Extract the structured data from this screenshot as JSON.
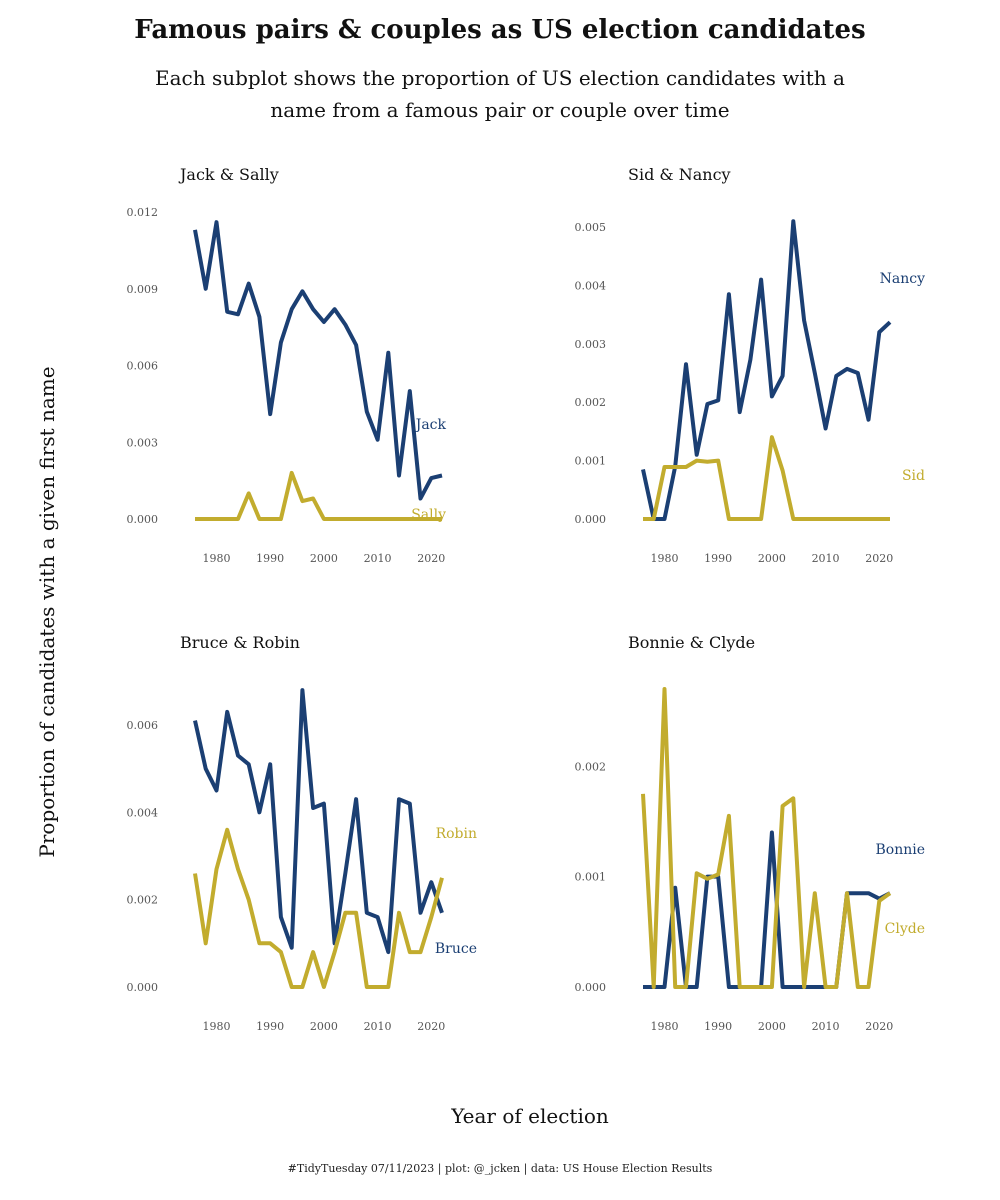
{
  "header": {
    "title": "Famous pairs & couples as US election candidates",
    "subtitle": "Each subplot shows the proportion of US election candidates with a name from a famous pair or couple over time"
  },
  "axes": {
    "ylabel": "Proportion of candidates with a given first name",
    "xlabel": "Year of election"
  },
  "caption": "#TidyTuesday 07/11/2023 | plot: @_jcken | data: US House Election Results",
  "colors": {
    "first": "#1b3f73",
    "second": "#c2ac2e"
  },
  "chart_data": [
    {
      "type": "line",
      "title": "Jack & Sally",
      "x": [
        1976,
        1978,
        1980,
        1982,
        1984,
        1986,
        1988,
        1990,
        1992,
        1994,
        1996,
        1998,
        2000,
        2002,
        2004,
        2006,
        2008,
        2010,
        2012,
        2014,
        2016,
        2018,
        2020,
        2022
      ],
      "xticks": [
        1980,
        1990,
        2000,
        2010,
        2020
      ],
      "yticks": [
        "0.000",
        "0.003",
        "0.006",
        "0.009",
        "0.012"
      ],
      "ylim": [
        0,
        0.012
      ],
      "series": [
        {
          "name": "Jack",
          "values": [
            0.0113,
            0.009,
            0.0116,
            0.0081,
            0.008,
            0.0092,
            0.0079,
            0.0041,
            0.0069,
            0.0082,
            0.0089,
            0.0082,
            0.0077,
            0.0082,
            0.0076,
            0.0068,
            0.0042,
            0.0031,
            0.0065,
            0.0017,
            0.005,
            0.0008,
            0.0016,
            0.0017
          ]
        },
        {
          "name": "Sally",
          "values": [
            0,
            0,
            0,
            0,
            0,
            0.001,
            0,
            0,
            0,
            0.0018,
            0.0007,
            0.0008,
            0,
            0,
            0,
            0,
            0,
            0,
            0,
            0,
            0,
            0,
            0,
            0
          ]
        }
      ]
    },
    {
      "type": "line",
      "title": "Sid & Nancy",
      "x": [
        1976,
        1978,
        1980,
        1982,
        1984,
        1986,
        1988,
        1990,
        1992,
        1994,
        1996,
        1998,
        2000,
        2002,
        2004,
        2006,
        2008,
        2010,
        2012,
        2014,
        2016,
        2018,
        2020,
        2022
      ],
      "xticks": [
        1980,
        1990,
        2000,
        2010,
        2020
      ],
      "yticks": [
        "0.000",
        "0.001",
        "0.002",
        "0.003",
        "0.004",
        "0.005"
      ],
      "ylim": [
        0,
        0.005
      ],
      "series": [
        {
          "name": "Nancy",
          "values": [
            0.00085,
            0,
            0,
            0.0009,
            0.00265,
            0.0011,
            0.00197,
            0.00203,
            0.00385,
            0.00183,
            0.00273,
            0.0041,
            0.0021,
            0.00245,
            0.0051,
            0.0034,
            0.0025,
            0.00155,
            0.00245,
            0.00257,
            0.0025,
            0.0017,
            0.0032,
            0.00337
          ]
        },
        {
          "name": "Sid",
          "values": [
            0,
            0,
            0.00089,
            0.00089,
            0.00089,
            0.001,
            0.00098,
            0.001,
            0,
            0,
            0,
            0,
            0.0014,
            0.00083,
            0,
            0,
            0,
            0,
            0,
            0,
            0,
            0,
            0,
            0
          ]
        }
      ]
    },
    {
      "type": "line",
      "title": "Bruce & Robin",
      "x": [
        1976,
        1978,
        1980,
        1982,
        1984,
        1986,
        1988,
        1990,
        1992,
        1994,
        1996,
        1998,
        2000,
        2002,
        2004,
        2006,
        2008,
        2010,
        2012,
        2014,
        2016,
        2018,
        2020,
        2022
      ],
      "xticks": [
        1980,
        1990,
        2000,
        2010,
        2020
      ],
      "yticks": [
        "0.000",
        "0.002",
        "0.004",
        "0.006"
      ],
      "ylim": [
        0,
        0.006
      ],
      "series": [
        {
          "name": "Bruce",
          "values": [
            0.0061,
            0.005,
            0.0045,
            0.0063,
            0.0053,
            0.0051,
            0.004,
            0.0051,
            0.0016,
            0.0009,
            0.0068,
            0.0041,
            0.0042,
            0.001,
            0.0026,
            0.0043,
            0.0017,
            0.0016,
            0.0008,
            0.0043,
            0.0042,
            0.0017,
            0.0024,
            0.0017
          ]
        },
        {
          "name": "Robin",
          "values": [
            0.0026,
            0.001,
            0.0027,
            0.0036,
            0.0027,
            0.002,
            0.001,
            0.001,
            0.0008,
            0,
            0,
            0.0008,
            0,
            0.0008,
            0.0017,
            0.0017,
            0,
            0,
            0,
            0.0017,
            0.0008,
            0.0008,
            0.0016,
            0.0025
          ]
        }
      ]
    },
    {
      "type": "line",
      "title": "Bonnie & Clyde",
      "x": [
        1976,
        1978,
        1980,
        1982,
        1984,
        1986,
        1988,
        1990,
        1992,
        1994,
        1996,
        1998,
        2000,
        2002,
        2004,
        2006,
        2008,
        2010,
        2012,
        2014,
        2016,
        2018,
        2020,
        2022
      ],
      "xticks": [
        1980,
        1990,
        2000,
        2010,
        2020
      ],
      "yticks": [
        "0.000",
        "0.001",
        "0.002"
      ],
      "ylim": [
        0,
        0.0027
      ],
      "series": [
        {
          "name": "Bonnie",
          "values": [
            0,
            0,
            0,
            0.0009,
            0,
            0,
            0.001,
            0.001,
            0,
            0,
            0,
            0,
            0.0014,
            0,
            0,
            0,
            0,
            0,
            0,
            0.00085,
            0.00085,
            0.00085,
            0.0008,
            0.00085
          ]
        },
        {
          "name": "Clyde",
          "values": [
            0.00175,
            0,
            0.0027,
            0,
            0,
            0.00103,
            0.00098,
            0.00102,
            0.00155,
            0,
            0,
            0,
            0,
            0.00164,
            0.00171,
            0,
            0.00085,
            0,
            0,
            0.00085,
            0,
            0,
            0.00078,
            0.00085
          ]
        }
      ]
    }
  ]
}
